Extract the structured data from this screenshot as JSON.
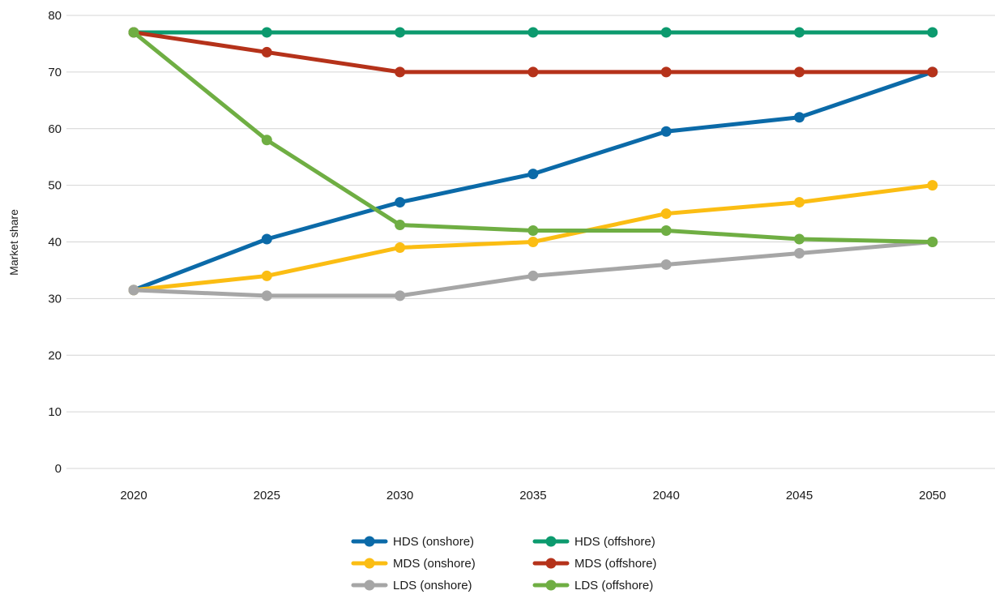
{
  "chart_data": {
    "type": "line",
    "title": "",
    "xlabel": "",
    "ylabel": "Market share",
    "x": [
      "2020",
      "2025",
      "2030",
      "2035",
      "2040",
      "2045",
      "2050"
    ],
    "ylim": [
      0,
      80
    ],
    "yticks": [
      0,
      10,
      20,
      30,
      40,
      50,
      60,
      70,
      80
    ],
    "grid": "horizontal",
    "legend_position": "bottom",
    "series": [
      {
        "name": "HDS (onshore)",
        "color": "#0b6aa8",
        "values": [
          31.5,
          40.5,
          47,
          52,
          59.5,
          62,
          70
        ]
      },
      {
        "name": "HDS (offshore)",
        "color": "#0c9a6e",
        "values": [
          77,
          77,
          77,
          77,
          77,
          77,
          77
        ]
      },
      {
        "name": "MDS (onshore)",
        "color": "#fbbd13",
        "values": [
          31.5,
          34,
          39,
          40,
          45,
          47,
          50
        ]
      },
      {
        "name": "MDS (offshore)",
        "color": "#b5321a",
        "values": [
          77,
          73.5,
          70,
          70,
          70,
          70,
          70
        ]
      },
      {
        "name": "LDS (onshore)",
        "color": "#a6a6a6",
        "values": [
          31.5,
          30.5,
          30.5,
          34,
          36,
          38,
          40
        ]
      },
      {
        "name": "LDS (offshore)",
        "color": "#6fae43",
        "values": [
          77,
          58,
          43,
          42,
          42,
          40.5,
          40
        ]
      }
    ]
  }
}
